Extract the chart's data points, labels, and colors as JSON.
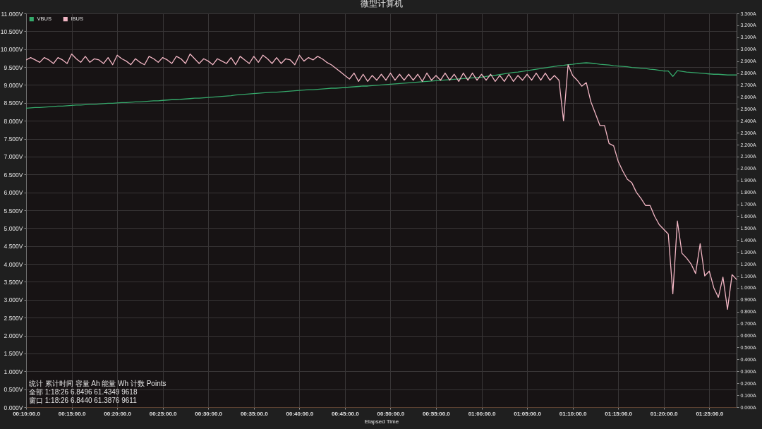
{
  "chart_data": {
    "type": "line",
    "title": "微型计算机",
    "xlabel": "Elapsed Time",
    "categories": [
      "00:10:00.0",
      null,
      null,
      null,
      null,
      null,
      null,
      null,
      null,
      null,
      "00:15:00.0",
      null,
      null,
      null,
      null,
      null,
      null,
      null,
      null,
      null,
      "00:20:00.0",
      null,
      null,
      null,
      null,
      null,
      null,
      null,
      null,
      null,
      "00:25:00.0",
      null,
      null,
      null,
      null,
      null,
      null,
      null,
      null,
      null,
      "00:30:00.0",
      null,
      null,
      null,
      null,
      null,
      null,
      null,
      null,
      null,
      "00:35:00.0",
      null,
      null,
      null,
      null,
      null,
      null,
      null,
      null,
      null,
      "00:40:00.0",
      null,
      null,
      null,
      null,
      null,
      null,
      null,
      null,
      null,
      "00:45:00.0",
      null,
      null,
      null,
      null,
      null,
      null,
      null,
      null,
      null,
      "00:50:00.0",
      null,
      null,
      null,
      null,
      null,
      null,
      null,
      null,
      null,
      "00:55:00.0",
      null,
      null,
      null,
      null,
      null,
      null,
      null,
      null,
      null,
      "01:00:00.0",
      null,
      null,
      null,
      null,
      null,
      null,
      null,
      null,
      null,
      "01:05:00.0",
      null,
      null,
      null,
      null,
      null,
      null,
      null,
      null,
      null,
      "01:10:00.0",
      null,
      null,
      null,
      null,
      null,
      null,
      null,
      null,
      null,
      "01:15:00.0",
      null,
      null,
      null,
      null,
      null,
      null,
      null,
      null,
      null,
      "01:20:00.0",
      null,
      null,
      null,
      null,
      null,
      null,
      null,
      null,
      null,
      "01:25:00.0",
      null,
      null,
      null,
      null,
      null,
      null
    ],
    "ylim": [
      0,
      11
    ],
    "yticks": [
      {
        "value": 0,
        "label": "0.000V"
      },
      {
        "value": 0.5,
        "label": "0.500V"
      },
      {
        "value": 1,
        "label": "1.000V"
      },
      {
        "value": 1.5,
        "label": "1.500V"
      },
      {
        "value": 2,
        "label": "2.000V"
      },
      {
        "value": 2.5,
        "label": "2.500V"
      },
      {
        "value": 3,
        "label": "3.000V"
      },
      {
        "value": 3.5,
        "label": "3.500V"
      },
      {
        "value": 4,
        "label": "4.000V"
      },
      {
        "value": 4.5,
        "label": "4.500V"
      },
      {
        "value": 5,
        "label": "5.000V"
      },
      {
        "value": 5.5,
        "label": "5.500V"
      },
      {
        "value": 6,
        "label": "6.000V"
      },
      {
        "value": 6.5,
        "label": "6.500V"
      },
      {
        "value": 7,
        "label": "7.000V"
      },
      {
        "value": 7.5,
        "label": "7.500V"
      },
      {
        "value": 8,
        "label": "8.000V"
      },
      {
        "value": 8.5,
        "label": "8.500V"
      },
      {
        "value": 9,
        "label": "9.000V"
      },
      {
        "value": 9.5,
        "label": "9.500V"
      },
      {
        "value": 10,
        "label": "10.000V"
      },
      {
        "value": 10.5,
        "label": "10.500V"
      },
      {
        "value": 11,
        "label": "11.000V"
      }
    ],
    "y2lim": [
      0,
      3.3
    ],
    "y2ticks": [
      {
        "value": 0,
        "label": "0.000A"
      },
      {
        "value": 0.1,
        "label": "0.100A"
      },
      {
        "value": 0.2,
        "label": "0.200A"
      },
      {
        "value": 0.3,
        "label": "0.300A"
      },
      {
        "value": 0.4,
        "label": "0.400A"
      },
      {
        "value": 0.5,
        "label": "0.500A"
      },
      {
        "value": 0.6,
        "label": "0.600A"
      },
      {
        "value": 0.7,
        "label": "0.700A"
      },
      {
        "value": 0.8,
        "label": "0.800A"
      },
      {
        "value": 0.9,
        "label": "0.900A"
      },
      {
        "value": 1.0,
        "label": "1.000A"
      },
      {
        "value": 1.1,
        "label": "1.100A"
      },
      {
        "value": 1.2,
        "label": "1.200A"
      },
      {
        "value": 1.3,
        "label": "1.300A"
      },
      {
        "value": 1.4,
        "label": "1.400A"
      },
      {
        "value": 1.5,
        "label": "1.500A"
      },
      {
        "value": 1.6,
        "label": "1.600A"
      },
      {
        "value": 1.7,
        "label": "1.700A"
      },
      {
        "value": 1.8,
        "label": "1.800A"
      },
      {
        "value": 1.9,
        "label": "1.900A"
      },
      {
        "value": 2.0,
        "label": "2.000A"
      },
      {
        "value": 2.1,
        "label": "2.100A"
      },
      {
        "value": 2.2,
        "label": "2.200A"
      },
      {
        "value": 2.3,
        "label": "2.300A"
      },
      {
        "value": 2.4,
        "label": "2.400A"
      },
      {
        "value": 2.5,
        "label": "2.500A"
      },
      {
        "value": 2.6,
        "label": "2.600A"
      },
      {
        "value": 2.7,
        "label": "2.700A"
      },
      {
        "value": 2.8,
        "label": "2.800A"
      },
      {
        "value": 2.9,
        "label": "2.900A"
      },
      {
        "value": 3.0,
        "label": "3.000A"
      },
      {
        "value": 3.1,
        "label": "3.100A"
      },
      {
        "value": 3.2,
        "label": "3.200A"
      },
      {
        "value": 3.3,
        "label": "3.300A"
      }
    ],
    "grid": true,
    "legend": "top left",
    "series": [
      {
        "name": "VBUS",
        "color": "#35a96b",
        "values": [
          8.35,
          8.36,
          8.37,
          8.37,
          8.38,
          8.39,
          8.4,
          8.41,
          8.41,
          8.42,
          8.43,
          8.44,
          8.44,
          8.45,
          8.46,
          8.46,
          8.47,
          8.48,
          8.49,
          8.49,
          8.5,
          8.51,
          8.51,
          8.52,
          8.53,
          8.53,
          8.54,
          8.55,
          8.56,
          8.56,
          8.57,
          8.58,
          8.59,
          8.59,
          8.6,
          8.61,
          8.62,
          8.63,
          8.63,
          8.64,
          8.65,
          8.66,
          8.67,
          8.68,
          8.69,
          8.7,
          8.72,
          8.73,
          8.74,
          8.75,
          8.76,
          8.77,
          8.78,
          8.79,
          8.8,
          8.8,
          8.81,
          8.82,
          8.83,
          8.84,
          8.85,
          8.86,
          8.87,
          8.87,
          8.88,
          8.89,
          8.9,
          8.91,
          8.91,
          8.92,
          8.93,
          8.94,
          8.95,
          8.96,
          8.97,
          8.97,
          8.98,
          8.99,
          9.0,
          9.01,
          9.02,
          9.03,
          9.04,
          9.05,
          9.06,
          9.07,
          9.08,
          9.09,
          9.1,
          9.11,
          9.12,
          9.13,
          9.14,
          9.15,
          9.16,
          9.17,
          9.18,
          9.19,
          9.2,
          9.21,
          9.22,
          9.24,
          9.26,
          9.27,
          9.29,
          9.31,
          9.33,
          9.35,
          9.36,
          9.38,
          9.4,
          9.42,
          9.44,
          9.46,
          9.48,
          9.5,
          9.52,
          9.54,
          9.55,
          9.57,
          9.58,
          9.6,
          9.61,
          9.62,
          9.61,
          9.6,
          9.58,
          9.57,
          9.56,
          9.54,
          9.53,
          9.52,
          9.51,
          9.49,
          9.48,
          9.47,
          9.46,
          9.44,
          9.43,
          9.41,
          9.39,
          9.39,
          9.24,
          9.4,
          9.38,
          9.36,
          9.35,
          9.34,
          9.33,
          9.32,
          9.31,
          9.3,
          9.3,
          9.29,
          9.28,
          9.28,
          9.28
        ]
      },
      {
        "name": "IBUS",
        "color": "#f2b6c4",
        "axis": "y2",
        "values": [
          2.91,
          2.93,
          2.91,
          2.89,
          2.93,
          2.91,
          2.88,
          2.93,
          2.91,
          2.88,
          2.96,
          2.92,
          2.89,
          2.94,
          2.89,
          2.92,
          2.91,
          2.88,
          2.93,
          2.87,
          2.95,
          2.92,
          2.9,
          2.87,
          2.92,
          2.89,
          2.87,
          2.94,
          2.92,
          2.89,
          2.93,
          2.91,
          2.88,
          2.94,
          2.92,
          2.88,
          2.96,
          2.92,
          2.88,
          2.92,
          2.9,
          2.87,
          2.92,
          2.9,
          2.88,
          2.93,
          2.87,
          2.94,
          2.91,
          2.88,
          2.94,
          2.89,
          2.95,
          2.92,
          2.88,
          2.93,
          2.88,
          2.92,
          2.91,
          2.87,
          2.95,
          2.9,
          2.93,
          2.91,
          2.94,
          2.92,
          2.89,
          2.87,
          2.84,
          2.81,
          2.78,
          2.75,
          2.8,
          2.73,
          2.79,
          2.73,
          2.78,
          2.74,
          2.79,
          2.74,
          2.8,
          2.74,
          2.79,
          2.74,
          2.79,
          2.74,
          2.79,
          2.73,
          2.8,
          2.74,
          2.78,
          2.74,
          2.8,
          2.74,
          2.79,
          2.73,
          2.8,
          2.74,
          2.8,
          2.74,
          2.79,
          2.74,
          2.79,
          2.73,
          2.78,
          2.73,
          2.79,
          2.73,
          2.78,
          2.74,
          2.79,
          2.74,
          2.8,
          2.74,
          2.8,
          2.74,
          2.78,
          2.74,
          2.4,
          2.87,
          2.78,
          2.74,
          2.69,
          2.72,
          2.56,
          2.46,
          2.36,
          2.36,
          2.21,
          2.19,
          2.06,
          1.98,
          1.91,
          1.88,
          1.8,
          1.75,
          1.69,
          1.69,
          1.6,
          1.53,
          1.49,
          1.45,
          0.95,
          1.56,
          1.29,
          1.25,
          1.2,
          1.12,
          1.37,
          1.1,
          1.14,
          1.0,
          0.92,
          1.09,
          0.82,
          1.11,
          1.07
        ]
      }
    ],
    "annotations": [
      "统计 累计时间 容量 Ah 能量 Wh 计数 Points",
      "全部 1:18:26 6.8496 61.4349 9618",
      "窗口 1:18:26 6.8440 61.3876 9611"
    ]
  }
}
